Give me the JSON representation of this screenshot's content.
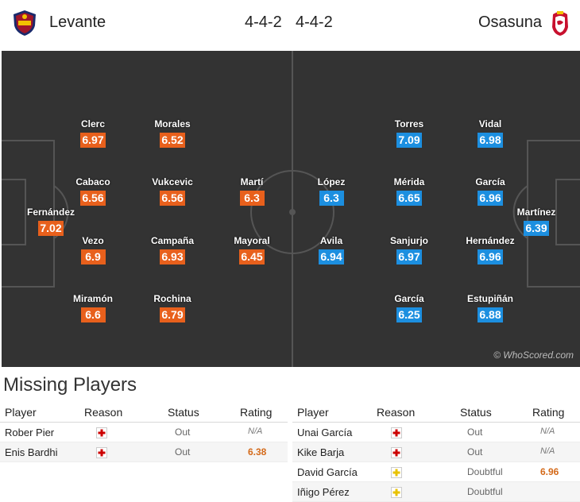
{
  "header": {
    "home_team": "Levante",
    "away_team": "Osasuna",
    "home_formation": "4-4-2",
    "away_formation": "4-4-2",
    "home_crest_icon": "levante-crest-icon",
    "away_crest_icon": "osasuna-crest-icon"
  },
  "colors": {
    "home": "#e8601c",
    "away": "#1c8fe0",
    "pitch": "#333333",
    "injury": "#cc0000",
    "doubtful": "#e8c200"
  },
  "pitch": {
    "credit": "© WhoScored.com",
    "home_players": [
      {
        "name": "Fernández",
        "rating": "7.02"
      },
      {
        "name": "Clerc",
        "rating": "6.97"
      },
      {
        "name": "Cabaco",
        "rating": "6.56"
      },
      {
        "name": "Vezo",
        "rating": "6.9"
      },
      {
        "name": "Miramón",
        "rating": "6.6"
      },
      {
        "name": "Morales",
        "rating": "6.52"
      },
      {
        "name": "Vukcevic",
        "rating": "6.56"
      },
      {
        "name": "Campaña",
        "rating": "6.93"
      },
      {
        "name": "Rochina",
        "rating": "6.79"
      },
      {
        "name": "Martí",
        "rating": "6.3"
      },
      {
        "name": "Mayoral",
        "rating": "6.45"
      }
    ],
    "away_players": [
      {
        "name": "López",
        "rating": "6.3"
      },
      {
        "name": "Avila",
        "rating": "6.94"
      },
      {
        "name": "Torres",
        "rating": "7.09"
      },
      {
        "name": "Mérida",
        "rating": "6.65"
      },
      {
        "name": "Sanjurjo",
        "rating": "6.97"
      },
      {
        "name": "García",
        "rating": "6.25"
      },
      {
        "name": "Vidal",
        "rating": "6.98"
      },
      {
        "name": "García",
        "rating": "6.96"
      },
      {
        "name": "Hernández",
        "rating": "6.96"
      },
      {
        "name": "Estupiñán",
        "rating": "6.88"
      },
      {
        "name": "Martínez",
        "rating": "6.39"
      }
    ]
  },
  "missing": {
    "title": "Missing Players",
    "columns": {
      "player": "Player",
      "reason": "Reason",
      "status": "Status",
      "rating": "Rating"
    },
    "home": [
      {
        "player": "Rober Pier",
        "reason": "injury-icon",
        "status": "Out",
        "rating": "N/A"
      },
      {
        "player": "Enis Bardhi",
        "reason": "injury-icon",
        "status": "Out",
        "rating": "6.38"
      }
    ],
    "away": [
      {
        "player": "Unai García",
        "reason": "injury-icon",
        "status": "Out",
        "rating": "N/A"
      },
      {
        "player": "Kike Barja",
        "reason": "injury-icon",
        "status": "Out",
        "rating": "N/A"
      },
      {
        "player": "David García",
        "reason": "doubtful-icon",
        "status": "Doubtful",
        "rating": "6.96"
      },
      {
        "player": "Iñigo Pérez",
        "reason": "doubtful-icon",
        "status": "Doubtful",
        "rating": ""
      }
    ]
  }
}
